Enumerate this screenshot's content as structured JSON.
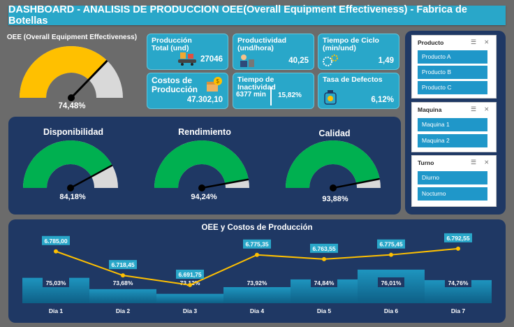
{
  "header": {
    "title": "DASHBOARD - ANALISIS DE PRODUCCION OEE(Overall Equipment Effectiveness) - Fabrica de Botellas"
  },
  "oee": {
    "label": "OEE (Overall Equipment Effectiveness)",
    "value_text": "74,48%",
    "value": 74.48,
    "color": "#ffc000"
  },
  "kpis": {
    "produccion_total": {
      "title": "Producción Total (und)",
      "value": "27046"
    },
    "productividad": {
      "title": "Productividad (und/hora)",
      "value": "40,25"
    },
    "tiempo_ciclo": {
      "title": "Tiempo de Ciclo (min/und)",
      "value": "1,49"
    },
    "costos": {
      "title": "Costos de Producción",
      "value": "47.302,10"
    },
    "inactividad": {
      "title": "Tiempo de Inactividad",
      "minutes": "6377 min",
      "percent": "15,82%"
    },
    "defectos": {
      "title": "Tasa de Defectos",
      "value": "6,12%"
    }
  },
  "gauges": [
    {
      "title": "Disponibilidad",
      "value_text": "84,18%",
      "value": 84.18
    },
    {
      "title": "Rendimiento",
      "value_text": "94,24%",
      "value": 94.24
    },
    {
      "title": "Calidad",
      "value_text": "93,88%",
      "value": 93.88
    }
  ],
  "gauge_color": "#00b050",
  "slicers": {
    "producto": {
      "title": "Producto",
      "items": [
        "Producto A",
        "Producto B",
        "Producto C"
      ]
    },
    "maquina": {
      "title": "Maquina",
      "items": [
        "Maquina 1",
        "Maquina 2"
      ]
    },
    "turno": {
      "title": "Turno",
      "items": [
        "Diurno",
        "Nocturno"
      ]
    }
  },
  "chart_data": {
    "type": "bar",
    "title": "OEE y Costos de Producción",
    "categories": [
      "Dia 1",
      "Dia 2",
      "Dia 3",
      "Dia 4",
      "Dia 5",
      "Dia 6",
      "Dia 7"
    ],
    "series": [
      {
        "name": "OEE",
        "type": "bar",
        "values": [
          75.03,
          73.68,
          73.12,
          73.92,
          74.84,
          76.01,
          74.76
        ],
        "labels": [
          "75,03%",
          "73,68%",
          "73,12%",
          "73,92%",
          "74,84%",
          "76,01%",
          "74,76%"
        ]
      },
      {
        "name": "Costos de Producción",
        "type": "line",
        "values": [
          6785.0,
          6718.45,
          6691.75,
          6775.35,
          6763.55,
          6775.45,
          6792.55
        ],
        "labels": [
          "6.785,00",
          "6.718,45",
          "6.691,75",
          "6.775,35",
          "6.763,55",
          "6.775,45",
          "6.792,55"
        ]
      }
    ],
    "bar_range": [
      72,
      77
    ],
    "line_range": [
      6680,
      6800
    ],
    "colors": {
      "bar": "#1f8fb8",
      "line": "#ffc000",
      "label_bg": "#29a7c9"
    }
  }
}
